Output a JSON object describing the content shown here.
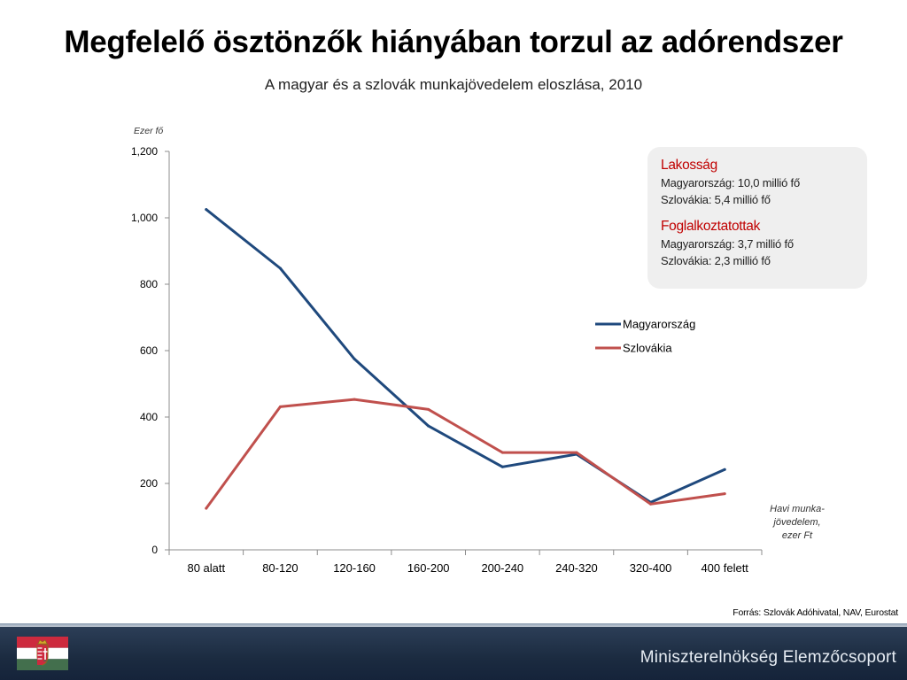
{
  "title": "Megfelelő ösztönzők hiányában torzul az adórendszer",
  "subtitle": "A magyar és a szlovák munkajövedelem eloszlása, 2010",
  "infobox": {
    "heading1": "Lakosság",
    "line1": "Magyarország: 10,0 millió fő",
    "line2": "Szlovákia: 5,4 millió fő",
    "heading2": "Foglalkoztatottak",
    "line3": "Magyarország: 3,7 millió fő",
    "line4": "Szlovákia: 2,3 millió fő"
  },
  "x_note": [
    "Havi munka-",
    "jövedelem,",
    "ezer Ft"
  ],
  "source": "Forrás: Szlovák Adóhivatal, NAV, Eurostat",
  "footer": {
    "org": "Miniszterelnökség Elemzőcsoport",
    "flag_icon": "hungary-flag-coat-of-arms-icon"
  },
  "colors": {
    "hungary": "#1f497d",
    "slovakia": "#c0504d",
    "title_accent": "#c00000"
  },
  "chart_data": {
    "type": "line",
    "ylabel": "Ezer fő",
    "ylim": [
      0,
      1200
    ],
    "yticks": [
      0,
      200,
      400,
      600,
      800,
      1000,
      1200
    ],
    "ytick_labels": [
      "0",
      "200",
      "400",
      "600",
      "800",
      "1,000",
      "1,200"
    ],
    "categories": [
      "80 alatt",
      "80-120",
      "120-160",
      "160-200",
      "200-240",
      "240-320",
      "320-400",
      "400 felett"
    ],
    "series": [
      {
        "name": "Magyarország",
        "color": "#1f497d",
        "values": [
          1025,
          848,
          575,
          373,
          250,
          288,
          143,
          242
        ]
      },
      {
        "name": "Szlovákia",
        "color": "#c0504d",
        "values": [
          125,
          431,
          453,
          423,
          293,
          293,
          138,
          169
        ]
      }
    ],
    "legend_position": "right",
    "grid": false
  }
}
